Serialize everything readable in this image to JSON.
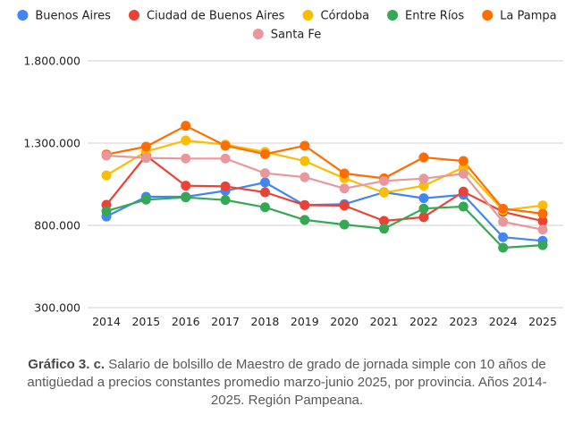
{
  "chart_data": {
    "type": "line",
    "title": "",
    "xlabel": "",
    "ylabel": "",
    "x": [
      "2014",
      "2015",
      "2016",
      "2017",
      "2018",
      "2019",
      "2020",
      "2021",
      "2022",
      "2023",
      "2024",
      "2025"
    ],
    "ylim": [
      300000,
      1800000
    ],
    "yticks": [
      300000,
      800000,
      1300000,
      1800000
    ],
    "ytick_labels": [
      "300.000",
      "800.000",
      "1.300.000",
      "1.800.000"
    ],
    "grid": true,
    "legend_position": "top-center",
    "series": [
      {
        "name": "Buenos Aires",
        "color": "#4285F4",
        "values": [
          854000,
          974000,
          974000,
          1010000,
          1061000,
          923000,
          929000,
          1001000,
          965000,
          986000,
          728000,
          706000
        ]
      },
      {
        "name": "Ciudad de Buenos Aires",
        "color": "#EA4335",
        "values": [
          925000,
          1224000,
          1041000,
          1037000,
          1001000,
          923000,
          920000,
          827000,
          850000,
          1005000,
          882000,
          826000
        ]
      },
      {
        "name": "Córdoba",
        "color": "#FBBC04",
        "values": [
          1104000,
          1249000,
          1316000,
          1291000,
          1246000,
          1191000,
          1086000,
          999000,
          1041000,
          1152000,
          892000,
          921000
        ]
      },
      {
        "name": "Entre Ríos",
        "color": "#34A853",
        "values": [
          887000,
          956000,
          970000,
          954000,
          910000,
          833000,
          805000,
          780000,
          902000,
          914000,
          664000,
          680000
        ]
      },
      {
        "name": "La Pampa",
        "color": "#FF6D01",
        "values": [
          1231000,
          1278000,
          1405000,
          1284000,
          1233000,
          1284000,
          1115000,
          1086000,
          1213000,
          1191000,
          901000,
          871000
        ]
      },
      {
        "name": "Santa Fe",
        "color": "#E8989C",
        "values": [
          1224000,
          1210000,
          1206000,
          1206000,
          1117000,
          1093000,
          1024000,
          1070000,
          1084000,
          1114000,
          822000,
          774000
        ]
      }
    ]
  },
  "caption": {
    "label": "Gráfico 3. c.",
    "text": " Salario de bolsillo de Maestro de grado de jornada simple con 10 años de antigüedad a precios constantes promedio marzo-junio 2025, por provincia. Años 2014-2025. Región Pampeana."
  }
}
